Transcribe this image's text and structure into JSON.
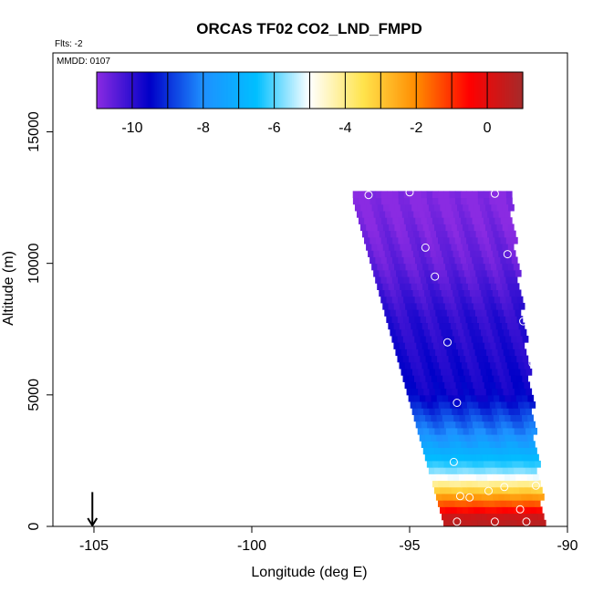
{
  "chart_data": {
    "type": "heatmap",
    "title": "ORCAS TF02 CO2_LND_FMPD",
    "flights_note": "Flts: -2",
    "date_note": "MMDD: 0107",
    "xlabel": "Longitude (deg E)",
    "ylabel": "Altitude (m)",
    "xlim": [
      -106.3,
      -90
    ],
    "ylim": [
      0,
      18000
    ],
    "x_ticks": [
      -105,
      -100,
      -95,
      -90
    ],
    "y_ticks": [
      0,
      5000,
      10000,
      15000
    ],
    "x_tick_labels": [
      "-105",
      "-100",
      "-95",
      "-90"
    ],
    "y_tick_labels": [
      "0",
      "5000",
      "10000",
      "15000"
    ],
    "colorbar": {
      "range": [
        -11,
        1
      ],
      "ticks": [
        -10,
        -8,
        -6,
        -4,
        -2,
        0
      ],
      "tick_labels": [
        "-10",
        "-8",
        "-6",
        "-4",
        "-2",
        "0"
      ],
      "colors": [
        "#8a2be2",
        "#0000c8",
        "#1e90ff",
        "#00bfff",
        "#ffffff",
        "#ffe44d",
        "#ff8c00",
        "#ff0000",
        "#a52a2a"
      ],
      "placement": "top-inside"
    },
    "arrow_marker": {
      "x": -105.05,
      "y_top": 750,
      "y_bottom": 0
    },
    "envelope": {
      "note": "curtain of model values along flight track",
      "top_left": [
        -96.8,
        12400
      ],
      "top_right": [
        -91.9,
        12700
      ],
      "bottom_left": [
        -93.9,
        0
      ],
      "bottom_right": [
        -90.8,
        0
      ]
    },
    "series": [
      {
        "value_profile": [
          {
            "z": 12500,
            "v": -11
          },
          {
            "z": 10000,
            "v": -10.6
          },
          {
            "z": 8000,
            "v": -10
          },
          {
            "z": 5000,
            "v": -9.6
          },
          {
            "z": 3500,
            "v": -8
          },
          {
            "z": 2500,
            "v": -6.5
          },
          {
            "z": 2000,
            "v": -5.5
          },
          {
            "z": 1600,
            "v": -4
          },
          {
            "z": 1200,
            "v": -2.5
          },
          {
            "z": 800,
            "v": -1.2
          },
          {
            "z": 300,
            "v": 0.6
          }
        ]
      }
    ],
    "observations": [
      {
        "x": -96.3,
        "y": 12600
      },
      {
        "x": -95.0,
        "y": 12700
      },
      {
        "x": -92.8,
        "y": 13000
      },
      {
        "x": -92.3,
        "y": 12650
      },
      {
        "x": -94.5,
        "y": 10600
      },
      {
        "x": -94.2,
        "y": 9500
      },
      {
        "x": -91.9,
        "y": 10350
      },
      {
        "x": -91.4,
        "y": 7800
      },
      {
        "x": -93.8,
        "y": 7000
      },
      {
        "x": -91.1,
        "y": 6200
      },
      {
        "x": -93.5,
        "y": 4700
      },
      {
        "x": -90.8,
        "y": 4400
      },
      {
        "x": -93.6,
        "y": 2450
      },
      {
        "x": -90.7,
        "y": 2150
      },
      {
        "x": -92.0,
        "y": 1500
      },
      {
        "x": -91.0,
        "y": 1550
      },
      {
        "x": -93.4,
        "y": 1150
      },
      {
        "x": -92.5,
        "y": 1350
      },
      {
        "x": -93.1,
        "y": 1100
      },
      {
        "x": -91.5,
        "y": 650
      },
      {
        "x": -93.5,
        "y": 180
      },
      {
        "x": -92.3,
        "y": 180
      },
      {
        "x": -91.3,
        "y": 180
      }
    ]
  }
}
